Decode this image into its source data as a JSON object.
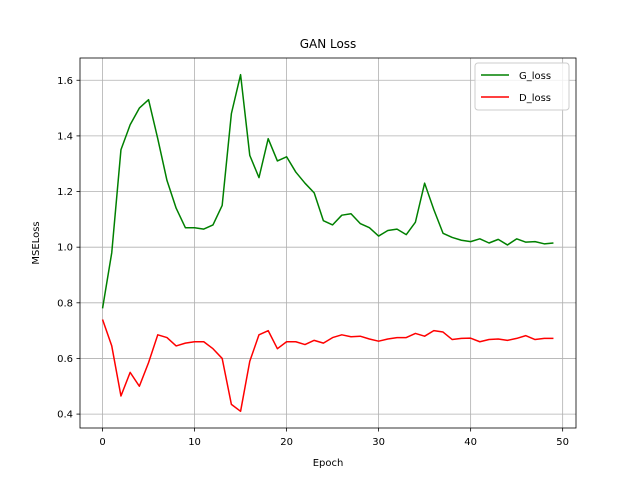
{
  "chart_data": {
    "type": "line",
    "title": "GAN Loss",
    "xlabel": "Epoch",
    "ylabel": "MSELoss",
    "xlim": [
      -2.45,
      51.45
    ],
    "ylim": [
      0.35,
      1.68
    ],
    "xticks": [
      0,
      10,
      20,
      30,
      40,
      50
    ],
    "yticks": [
      0.4,
      0.6,
      0.8,
      1.0,
      1.2,
      1.4,
      1.6
    ],
    "grid": true,
    "legend_position": "top-right",
    "x": [
      0,
      1,
      2,
      3,
      4,
      5,
      6,
      7,
      8,
      9,
      10,
      11,
      12,
      13,
      14,
      15,
      16,
      17,
      18,
      19,
      20,
      21,
      22,
      23,
      24,
      25,
      26,
      27,
      28,
      29,
      30,
      31,
      32,
      33,
      34,
      35,
      36,
      37,
      38,
      39,
      40,
      41,
      42,
      43,
      44,
      45,
      46,
      47,
      48,
      49
    ],
    "series": [
      {
        "name": "G_loss",
        "color": "#008000",
        "values": [
          0.78,
          0.98,
          1.35,
          1.44,
          1.5,
          1.53,
          1.39,
          1.24,
          1.14,
          1.07,
          1.07,
          1.065,
          1.08,
          1.15,
          1.48,
          1.62,
          1.33,
          1.25,
          1.39,
          1.31,
          1.325,
          1.27,
          1.23,
          1.195,
          1.095,
          1.08,
          1.115,
          1.12,
          1.085,
          1.07,
          1.04,
          1.06,
          1.065,
          1.045,
          1.09,
          1.23,
          1.135,
          1.05,
          1.035,
          1.025,
          1.02,
          1.03,
          1.015,
          1.028,
          1.008,
          1.03,
          1.018,
          1.02,
          1.012,
          1.015
        ]
      },
      {
        "name": "D_loss",
        "color": "#ff0000",
        "values": [
          0.74,
          0.645,
          0.465,
          0.55,
          0.5,
          0.585,
          0.685,
          0.675,
          0.645,
          0.655,
          0.66,
          0.66,
          0.635,
          0.6,
          0.435,
          0.41,
          0.59,
          0.685,
          0.7,
          0.635,
          0.66,
          0.66,
          0.65,
          0.665,
          0.655,
          0.675,
          0.685,
          0.678,
          0.68,
          0.67,
          0.662,
          0.67,
          0.675,
          0.675,
          0.69,
          0.68,
          0.7,
          0.695,
          0.668,
          0.672,
          0.673,
          0.66,
          0.668,
          0.67,
          0.665,
          0.672,
          0.682,
          0.668,
          0.672,
          0.672
        ]
      }
    ]
  }
}
